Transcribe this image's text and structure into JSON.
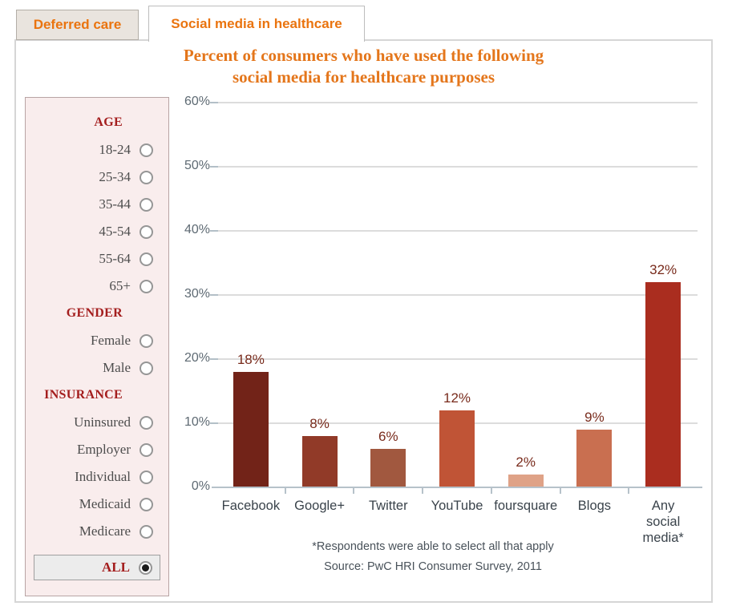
{
  "tabs": [
    {
      "label": "Deferred care",
      "active": false
    },
    {
      "label": "Social media in healthcare",
      "active": true
    }
  ],
  "title": {
    "line1": "Percent of consumers who have used the following",
    "line2": "social media for healthcare purposes"
  },
  "filters": {
    "groups": [
      {
        "heading": "AGE",
        "options": [
          "18-24",
          "25-34",
          "35-44",
          "45-54",
          "55-64",
          "65+"
        ]
      },
      {
        "heading": "GENDER",
        "options": [
          "Female",
          "Male"
        ]
      },
      {
        "heading": "INSURANCE",
        "options": [
          "Uninsured",
          "Employer",
          "Individual",
          "Medicaid",
          "Medicare"
        ]
      }
    ],
    "all_label": "ALL",
    "selected": "ALL"
  },
  "chart_data": {
    "type": "bar",
    "title": "Percent of consumers who have used the following social media for healthcare purposes",
    "categories": [
      "Facebook",
      "Google+",
      "Twitter",
      "YouTube",
      "foursquare",
      "Blogs",
      "Any social media*"
    ],
    "values": [
      18,
      8,
      6,
      12,
      2,
      9,
      32
    ],
    "value_labels": [
      "18%",
      "8%",
      "6%",
      "12%",
      "2%",
      "9%",
      "32%"
    ],
    "bar_colors": [
      "#722318",
      "#913a28",
      "#a1583f",
      "#c05436",
      "#dfa287",
      "#c96f50",
      "#aa2d1f"
    ],
    "y_ticks": [
      "0%",
      "10%",
      "20%",
      "30%",
      "40%",
      "50%",
      "60%"
    ],
    "ylim": [
      0,
      60
    ],
    "grid": true,
    "legend": "none",
    "footnote1": "*Respondents were able to select all that apply",
    "footnote2": "Source: PwC HRI Consumer Survey, 2011"
  },
  "colors": {
    "tab_text": "#ea740f",
    "title_text": "#e4761b",
    "group_heading": "#a41e1e",
    "sidebar_bg": "#f9eded",
    "value_label": "#782a1b",
    "axis": "#b6c2ca",
    "gridline": "#dcdcdc",
    "y_label": "#5e6a73",
    "x_label": "#3a434b"
  }
}
